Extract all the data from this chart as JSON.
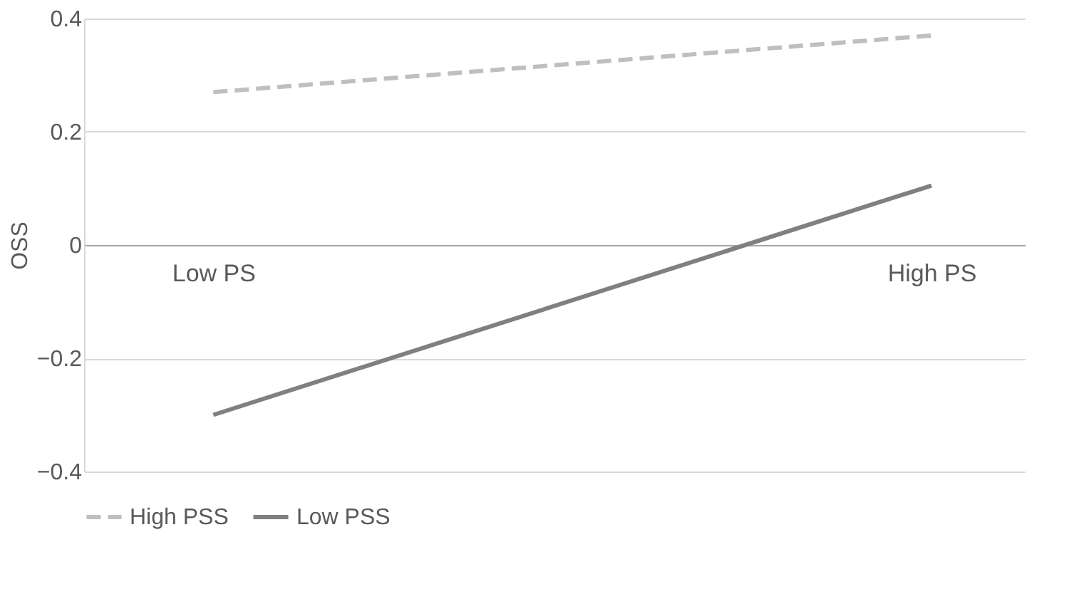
{
  "chart_data": {
    "type": "line",
    "ylabel": "OSS",
    "categories": [
      "Low PS",
      "High PS"
    ],
    "series": [
      {
        "name": "High PSS",
        "color": "#bfbfbf",
        "line_style": "dashed",
        "values": [
          0.27,
          0.37
        ]
      },
      {
        "name": "Low PSS",
        "color": "#808080",
        "line_style": "solid",
        "values": [
          -0.3,
          0.105
        ]
      }
    ],
    "ylim": [
      -0.4,
      0.4
    ],
    "yticks": [
      -0.4,
      -0.2,
      0,
      0.2,
      0.4
    ],
    "grid": "y",
    "legend": "bottom",
    "marker": "none"
  }
}
